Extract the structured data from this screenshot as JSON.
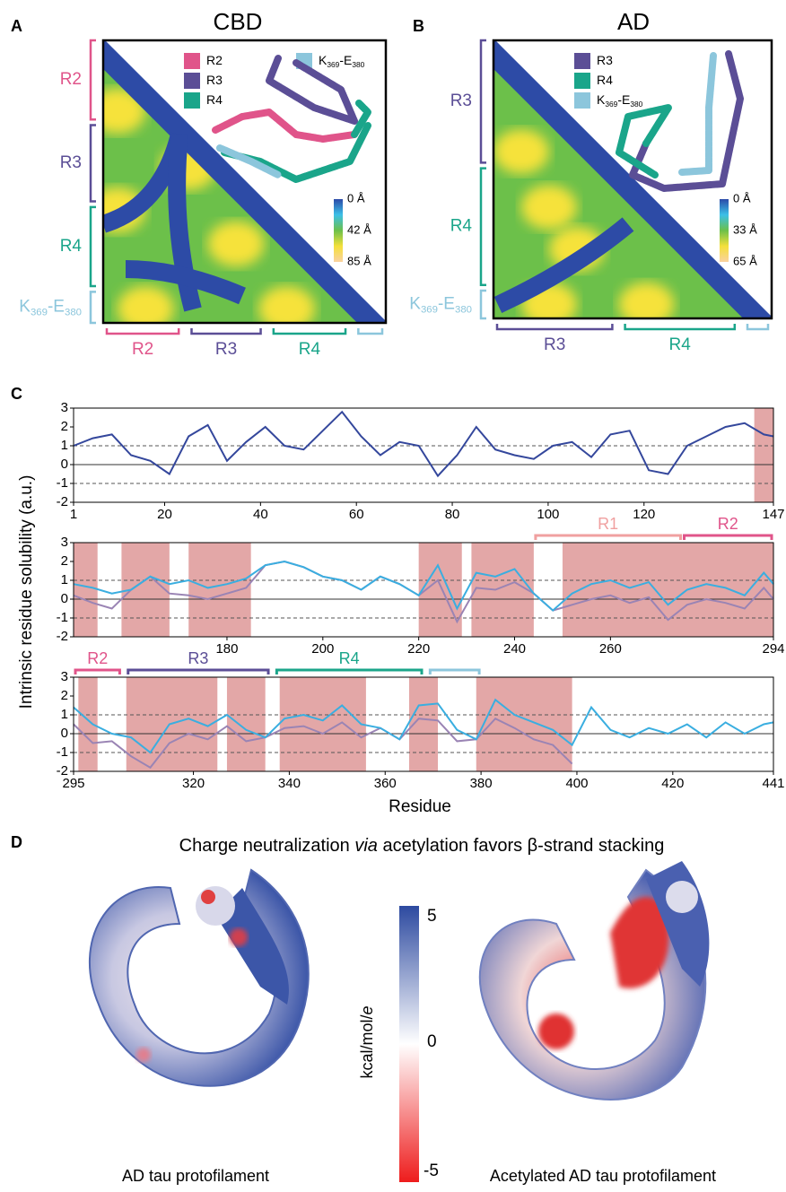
{
  "panel_a": {
    "letter": "A",
    "title": "CBD",
    "regions": [
      {
        "parts": [
          "R2"
        ],
        "color": "#e0548a"
      },
      {
        "parts": [
          "R3"
        ],
        "color": "#5b4e96"
      },
      {
        "parts": [
          "R4"
        ],
        "color": "#1aa58a"
      },
      {
        "parts": [
          "K",
          "369",
          "-E",
          "380"
        ],
        "color": "#8cc6dc"
      }
    ],
    "colorbar": [
      "0 Å",
      "42 Å",
      "85 Å"
    ]
  },
  "panel_b": {
    "letter": "B",
    "title": "AD",
    "regions": [
      {
        "parts": [
          "R3"
        ],
        "color": "#5b4e96"
      },
      {
        "parts": [
          "R4"
        ],
        "color": "#1aa58a"
      },
      {
        "parts": [
          "K",
          "369",
          "-E",
          "380"
        ],
        "color": "#8cc6dc"
      }
    ],
    "colorbar": [
      "0 Å",
      "33 Å",
      "65 Å"
    ]
  },
  "panel_c": {
    "letter": "C",
    "ylabel": "Intrinsic residue solubility (a.u.)",
    "xlabel": "Residue"
  },
  "chart_data": [
    {
      "type": "line",
      "x": [
        1,
        5,
        9,
        13,
        17,
        21,
        25,
        29,
        33,
        37,
        41,
        45,
        49,
        53,
        57,
        61,
        65,
        69,
        73,
        77,
        81,
        85,
        89,
        93,
        97,
        101,
        105,
        109,
        113,
        117,
        121,
        125,
        129,
        133,
        137,
        141,
        145,
        147
      ],
      "series": [
        {
          "color": "#34479c",
          "values": [
            1.0,
            1.4,
            1.6,
            0.5,
            0.2,
            -0.5,
            1.5,
            2.1,
            0.2,
            1.2,
            2.0,
            1.0,
            0.8,
            1.8,
            2.8,
            1.5,
            0.5,
            1.2,
            1.0,
            -0.6,
            0.5,
            2.0,
            0.8,
            0.5,
            0.3,
            1.0,
            1.2,
            0.4,
            1.6,
            1.8,
            -0.3,
            -0.5,
            1.0,
            1.5,
            2.0,
            2.2,
            1.6,
            1.5
          ]
        }
      ],
      "xlim": [
        1,
        147
      ],
      "ylim": [
        -2,
        3
      ],
      "yticks": [
        -2,
        -1,
        0,
        1,
        2,
        3
      ],
      "xticks": [
        1,
        20,
        40,
        60,
        80,
        100,
        120,
        147
      ],
      "dashed_at": [
        -1,
        1
      ],
      "shaded": [
        [
          143,
          147
        ]
      ],
      "shade_color": "#d98a8a",
      "regions": []
    },
    {
      "type": "line",
      "x": [
        148,
        152,
        156,
        160,
        164,
        168,
        172,
        176,
        180,
        184,
        188,
        192,
        196,
        200,
        204,
        208,
        212,
        216,
        220,
        224,
        228,
        232,
        236,
        240,
        244,
        248,
        252,
        256,
        260,
        264,
        268,
        272,
        276,
        280,
        284,
        288,
        292,
        294
      ],
      "series": [
        {
          "color": "#3aaee0",
          "values": [
            0.8,
            0.6,
            0.3,
            0.5,
            1.2,
            0.8,
            1.0,
            0.6,
            0.8,
            1.1,
            1.8,
            2.0,
            1.7,
            1.2,
            1.0,
            0.5,
            1.2,
            0.8,
            0.2,
            1.8,
            -0.5,
            1.4,
            1.2,
            1.6,
            0.3,
            -0.6,
            0.3,
            0.8,
            1.0,
            0.6,
            0.9,
            -0.3,
            0.5,
            0.8,
            0.6,
            0.2,
            1.4,
            0.8
          ]
        },
        {
          "color": "#9a84b4",
          "values": [
            0.2,
            -0.2,
            -0.5,
            0.5,
            1.2,
            0.3,
            0.2,
            0.0,
            0.3,
            0.6,
            1.8,
            2.0,
            1.7,
            1.2,
            1.0,
            0.5,
            1.2,
            0.8,
            0.2,
            1.0,
            -1.2,
            0.6,
            0.5,
            0.9,
            0.3,
            -0.6,
            -0.3,
            0.0,
            0.2,
            -0.2,
            0.1,
            -1.1,
            -0.3,
            0.0,
            -0.2,
            -0.5,
            0.6,
            0.0
          ]
        }
      ],
      "xlim": [
        148,
        294
      ],
      "ylim": [
        -2,
        3
      ],
      "yticks": [
        -2,
        -1,
        0,
        1,
        2,
        3
      ],
      "xticks": [
        180,
        200,
        220,
        240,
        260,
        294
      ],
      "dashed_at": [
        -1,
        1
      ],
      "shaded": [
        [
          148,
          153
        ],
        [
          158,
          168
        ],
        [
          172,
          185
        ],
        [
          220,
          229
        ],
        [
          231,
          244
        ],
        [
          250,
          294
        ]
      ],
      "shade_color": "#d98a8a",
      "regions": [
        {
          "label": "R1",
          "color": "#f0a0a0",
          "start": 244,
          "end": 275
        },
        {
          "label": "R2",
          "color": "#e0548a",
          "start": 275,
          "end": 294
        }
      ]
    },
    {
      "type": "line",
      "x": [
        295,
        299,
        303,
        307,
        311,
        315,
        319,
        323,
        327,
        331,
        335,
        339,
        343,
        347,
        351,
        355,
        359,
        363,
        367,
        371,
        375,
        379,
        383,
        387,
        391,
        395,
        399,
        403,
        407,
        411,
        415,
        419,
        423,
        427,
        431,
        435,
        439,
        441
      ],
      "series": [
        {
          "color": "#3aaee0",
          "values": [
            1.4,
            0.5,
            0.0,
            -0.2,
            -1.0,
            0.5,
            0.8,
            0.4,
            1.0,
            0.2,
            -0.2,
            0.8,
            1.0,
            0.7,
            1.5,
            0.5,
            0.3,
            -0.3,
            1.5,
            1.6,
            0.2,
            -0.3,
            1.8,
            1.0,
            0.6,
            0.2,
            -0.6,
            1.4,
            0.2,
            -0.2,
            0.3,
            0.0,
            0.5,
            -0.2,
            0.6,
            0.0,
            0.5,
            0.6
          ]
        },
        {
          "color": "#9a84b4",
          "values": [
            0.5,
            -0.5,
            -0.4,
            -1.2,
            -1.8,
            -0.5,
            0.0,
            -0.3,
            0.4,
            -0.4,
            -0.2,
            0.3,
            0.4,
            0.0,
            0.6,
            -0.2,
            0.3,
            -0.3,
            0.8,
            0.7,
            -0.4,
            -0.3,
            0.8,
            0.3,
            -0.3,
            -0.6,
            -1.6,
            null,
            null,
            null,
            null,
            null,
            null,
            null,
            null,
            null,
            null,
            null
          ]
        }
      ],
      "xlim": [
        295,
        441
      ],
      "ylim": [
        -2,
        3
      ],
      "yticks": [
        -2,
        -1,
        0,
        1,
        2,
        3
      ],
      "xticks": [
        295,
        320,
        340,
        360,
        380,
        400,
        420,
        441
      ],
      "dashed_at": [
        -1,
        1
      ],
      "shaded": [
        [
          296,
          300
        ],
        [
          306,
          325
        ],
        [
          327,
          335
        ],
        [
          338,
          356
        ],
        [
          365,
          371
        ],
        [
          379,
          399
        ]
      ],
      "shade_color": "#d98a8a",
      "regions": [
        {
          "label": "R2",
          "color": "#e0548a",
          "start": 295,
          "end": 305
        },
        {
          "label": "R3",
          "color": "#5b4e96",
          "start": 306,
          "end": 336
        },
        {
          "label": "R4",
          "color": "#1aa58a",
          "start": 337,
          "end": 368
        },
        {
          "color": "#8cc6dc",
          "start": 369,
          "end": 380
        }
      ]
    }
  ],
  "panel_d": {
    "letter": "D",
    "title": [
      "Charge neutralization ",
      "via",
      " acetylation favors β-strand stacking"
    ],
    "colorbar": {
      "top": "5",
      "mid": "0",
      "bottom": "-5",
      "label": [
        "kcal/mol/",
        "e"
      ]
    },
    "captions": [
      "AD tau protofilament",
      "Acetylated AD tau protofilament"
    ]
  }
}
